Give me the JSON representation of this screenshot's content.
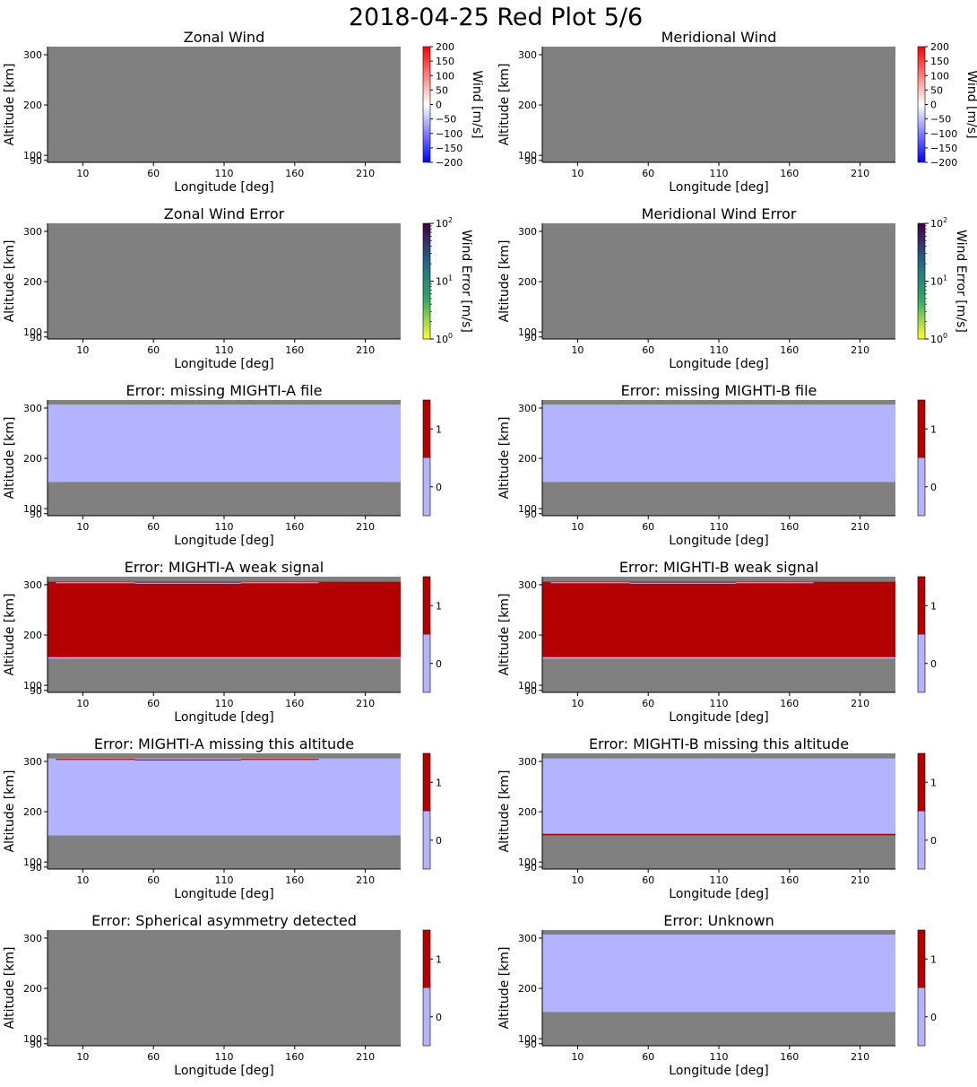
{
  "page": {
    "title": "2018-04-25 Red Plot 5/6"
  },
  "colors": {
    "missing_data": "#808080",
    "flag_off": "#b3b3ff",
    "flag_on": "#b30000",
    "wind_cmap": [
      "#0000ff",
      "#ffffff",
      "#ff0000"
    ],
    "error_cmap": [
      "#ffff33",
      "#33aa66",
      "#226688",
      "#440044"
    ]
  },
  "axis_labels": {
    "xlabel": "Longitude [deg]",
    "ylabel": "Altitude [km]",
    "xticks": [
      "10",
      "60",
      "110",
      "160",
      "210"
    ],
    "xtick_values": [
      10,
      60,
      110,
      160,
      210
    ],
    "yticks": [
      "90",
      "100",
      "200",
      "300"
    ],
    "ytick_values": [
      90,
      100,
      200,
      300
    ],
    "xlim": [
      -15,
      235
    ],
    "ylim": [
      86,
      316
    ]
  },
  "colorbars": {
    "wind": {
      "label": "Wind [m/s]",
      "ticks": [
        "200",
        "150",
        "100",
        "50",
        "0",
        "−50",
        "−100",
        "−150",
        "−200"
      ],
      "tick_values": [
        200,
        150,
        100,
        50,
        0,
        -50,
        -100,
        -150,
        -200
      ],
      "range": [
        -200,
        200
      ]
    },
    "error": {
      "label": "Wind Error [m/s]",
      "ticks": [
        "10",
        "10",
        "10"
      ],
      "tick_exponents": [
        "2",
        "1",
        "0"
      ],
      "tick_values": [
        100,
        10,
        1
      ],
      "range": [
        1,
        100
      ],
      "scale": "log"
    },
    "flag": {
      "ticks": [
        "1",
        "0"
      ],
      "tick_values": [
        1,
        0
      ],
      "range": [
        -0.5,
        1.5
      ]
    }
  },
  "chart_data": [
    {
      "type": "heatmap",
      "title": "Zonal Wind",
      "colorbar": "wind",
      "layers": []
    },
    {
      "type": "heatmap",
      "title": "Meridional Wind",
      "colorbar": "wind",
      "layers": []
    },
    {
      "type": "heatmap",
      "title": "Zonal Wind Error",
      "colorbar": "error",
      "layers": []
    },
    {
      "type": "heatmap",
      "title": "Meridional Wind Error",
      "colorbar": "error",
      "layers": []
    },
    {
      "type": "heatmap",
      "title": "Error: missing MIGHTI-A file",
      "colorbar": "flag",
      "layers": [
        {
          "lon": [
            -15,
            235
          ],
          "alt": [
            153,
            307
          ],
          "value": 0
        }
      ]
    },
    {
      "type": "heatmap",
      "title": "Error: missing MIGHTI-B file",
      "colorbar": "flag",
      "layers": [
        {
          "lon": [
            -15,
            235
          ],
          "alt": [
            153,
            307
          ],
          "value": 0
        }
      ]
    },
    {
      "type": "heatmap",
      "title": "Error: MIGHTI-A weak signal",
      "colorbar": "flag",
      "layers": [
        {
          "lon": [
            -15,
            235
          ],
          "alt": [
            153,
            306
          ],
          "value": 1
        },
        {
          "lon": [
            -15,
            235
          ],
          "alt": [
            153,
            156
          ],
          "value": 0
        },
        {
          "lon": [
            -9,
            47
          ],
          "alt": [
            303,
            305
          ],
          "value": 0
        },
        {
          "lon": [
            47,
            122
          ],
          "alt": [
            302,
            304
          ],
          "value": 0
        },
        {
          "lon": [
            122,
            177
          ],
          "alt": [
            303,
            305
          ],
          "value": 0
        }
      ]
    },
    {
      "type": "heatmap",
      "title": "Error: MIGHTI-B weak signal",
      "colorbar": "flag",
      "layers": [
        {
          "lon": [
            -15,
            235
          ],
          "alt": [
            153,
            306
          ],
          "value": 1
        },
        {
          "lon": [
            -15,
            235
          ],
          "alt": [
            153,
            156
          ],
          "value": 0
        },
        {
          "lon": [
            -9,
            47
          ],
          "alt": [
            303,
            305
          ],
          "value": 0
        },
        {
          "lon": [
            47,
            122
          ],
          "alt": [
            302,
            304
          ],
          "value": 0
        },
        {
          "lon": [
            122,
            177
          ],
          "alt": [
            303,
            305
          ],
          "value": 0
        }
      ]
    },
    {
      "type": "heatmap",
      "title": "Error: MIGHTI-A missing this altitude",
      "colorbar": "flag",
      "layers": [
        {
          "lon": [
            -15,
            235
          ],
          "alt": [
            153,
            306
          ],
          "value": 0
        },
        {
          "lon": [
            -9,
            47
          ],
          "alt": [
            303,
            305
          ],
          "value": 1
        },
        {
          "lon": [
            47,
            122
          ],
          "alt": [
            302,
            304
          ],
          "value": 1
        },
        {
          "lon": [
            122,
            177
          ],
          "alt": [
            303,
            305
          ],
          "value": 1
        }
      ]
    },
    {
      "type": "heatmap",
      "title": "Error: MIGHTI-B missing this altitude",
      "colorbar": "flag",
      "layers": [
        {
          "lon": [
            -15,
            235
          ],
          "alt": [
            153,
            306
          ],
          "value": 0
        },
        {
          "lon": [
            -15,
            235
          ],
          "alt": [
            153,
            156
          ],
          "value": 1
        }
      ]
    },
    {
      "type": "heatmap",
      "title": "Error: Spherical asymmetry detected",
      "colorbar": "flag",
      "layers": []
    },
    {
      "type": "heatmap",
      "title": "Error: Unknown",
      "colorbar": "flag",
      "layers": [
        {
          "lon": [
            -15,
            235
          ],
          "alt": [
            153,
            307
          ],
          "value": 0
        }
      ]
    }
  ]
}
